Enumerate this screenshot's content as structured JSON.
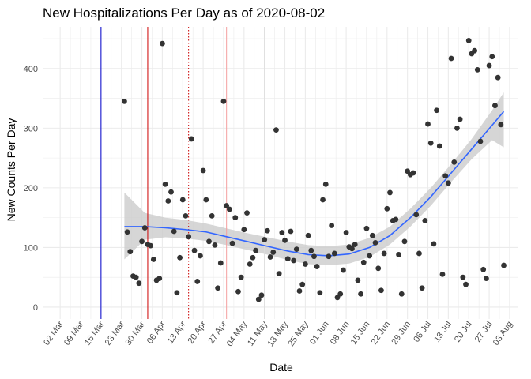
{
  "chart_data": {
    "type": "scatter",
    "title": "New Hospitalizations Per Day as of 2020-08-02",
    "xlabel": "Date",
    "ylabel": "New Counts Per Day",
    "x_ticks": [
      "02 Mar",
      "09 Mar",
      "16 Mar",
      "23 Mar",
      "30 Mar",
      "06 Apr",
      "13 Apr",
      "20 Apr",
      "27 Apr",
      "04 May",
      "11 May",
      "18 May",
      "25 May",
      "01 Jun",
      "08 Jun",
      "15 Jun",
      "22 Jun",
      "29 Jun",
      "06 Jul",
      "13 Jul",
      "20 Jul",
      "27 Jul",
      "03 Aug"
    ],
    "y_ticks": [
      0,
      100,
      200,
      300,
      400
    ],
    "xlim": [
      "2020-02-25",
      "2020-08-06"
    ],
    "ylim": [
      -20,
      470
    ],
    "grid": true,
    "colors": {
      "points": "#333333",
      "smooth_line": "#3366ff",
      "smooth_band": "#cccccc",
      "grid": "#ebebeb"
    },
    "vlines": [
      {
        "date": "2020-03-16",
        "color": "#0000cc",
        "style": "solid"
      },
      {
        "date": "2020-04-01",
        "color": "#cc0000",
        "style": "solid"
      },
      {
        "date": "2020-04-15",
        "color": "#cc0000",
        "style": "dotted"
      },
      {
        "date": "2020-04-28",
        "color": "#f4a0a0",
        "style": "solid"
      },
      {
        "date": "2020-05-11",
        "color": "#dddddd",
        "style": "solid"
      }
    ],
    "points": [
      [
        "2020-03-24",
        345
      ],
      [
        "2020-03-25",
        126
      ],
      [
        "2020-03-26",
        93
      ],
      [
        "2020-03-27",
        52
      ],
      [
        "2020-03-28",
        50
      ],
      [
        "2020-03-29",
        40
      ],
      [
        "2020-03-30",
        110
      ],
      [
        "2020-03-31",
        133
      ],
      [
        "2020-04-01",
        105
      ],
      [
        "2020-04-02",
        103
      ],
      [
        "2020-04-03",
        80
      ],
      [
        "2020-04-04",
        45
      ],
      [
        "2020-04-05",
        48
      ],
      [
        "2020-04-06",
        442
      ],
      [
        "2020-04-07",
        206
      ],
      [
        "2020-04-08",
        178
      ],
      [
        "2020-04-09",
        193
      ],
      [
        "2020-04-10",
        127
      ],
      [
        "2020-04-11",
        24
      ],
      [
        "2020-04-12",
        83
      ],
      [
        "2020-04-13",
        180
      ],
      [
        "2020-04-14",
        153
      ],
      [
        "2020-04-15",
        118
      ],
      [
        "2020-04-16",
        282
      ],
      [
        "2020-04-17",
        95
      ],
      [
        "2020-04-18",
        43
      ],
      [
        "2020-04-19",
        86
      ],
      [
        "2020-04-20",
        229
      ],
      [
        "2020-04-21",
        180
      ],
      [
        "2020-04-22",
        110
      ],
      [
        "2020-04-23",
        153
      ],
      [
        "2020-04-24",
        104
      ],
      [
        "2020-04-25",
        32
      ],
      [
        "2020-04-26",
        74
      ],
      [
        "2020-04-27",
        345
      ],
      [
        "2020-04-28",
        170
      ],
      [
        "2020-04-29",
        164
      ],
      [
        "2020-04-30",
        107
      ],
      [
        "2020-05-01",
        150
      ],
      [
        "2020-05-02",
        26
      ],
      [
        "2020-05-03",
        50
      ],
      [
        "2020-05-04",
        130
      ],
      [
        "2020-05-05",
        158
      ],
      [
        "2020-05-06",
        72
      ],
      [
        "2020-05-07",
        83
      ],
      [
        "2020-05-08",
        95
      ],
      [
        "2020-05-09",
        13
      ],
      [
        "2020-05-10",
        20
      ],
      [
        "2020-05-11",
        113
      ],
      [
        "2020-05-12",
        128
      ],
      [
        "2020-05-13",
        84
      ],
      [
        "2020-05-14",
        92
      ],
      [
        "2020-05-15",
        297
      ],
      [
        "2020-05-16",
        56
      ],
      [
        "2020-05-17",
        125
      ],
      [
        "2020-05-18",
        112
      ],
      [
        "2020-05-19",
        81
      ],
      [
        "2020-05-20",
        127
      ],
      [
        "2020-05-21",
        78
      ],
      [
        "2020-05-22",
        97
      ],
      [
        "2020-05-23",
        27
      ],
      [
        "2020-05-24",
        38
      ],
      [
        "2020-05-25",
        72
      ],
      [
        "2020-05-26",
        120
      ],
      [
        "2020-05-27",
        95
      ],
      [
        "2020-05-28",
        85
      ],
      [
        "2020-05-29",
        68
      ],
      [
        "2020-05-30",
        24
      ],
      [
        "2020-05-31",
        180
      ],
      [
        "2020-06-01",
        206
      ],
      [
        "2020-06-02",
        85
      ],
      [
        "2020-06-03",
        137
      ],
      [
        "2020-06-04",
        90
      ],
      [
        "2020-06-05",
        16
      ],
      [
        "2020-06-06",
        22
      ],
      [
        "2020-06-07",
        62
      ],
      [
        "2020-06-08",
        125
      ],
      [
        "2020-06-09",
        101
      ],
      [
        "2020-06-10",
        98
      ],
      [
        "2020-06-11",
        105
      ],
      [
        "2020-06-12",
        45
      ],
      [
        "2020-06-13",
        22
      ],
      [
        "2020-06-14",
        75
      ],
      [
        "2020-06-15",
        132
      ],
      [
        "2020-06-16",
        86
      ],
      [
        "2020-06-17",
        120
      ],
      [
        "2020-06-18",
        108
      ],
      [
        "2020-06-19",
        65
      ],
      [
        "2020-06-20",
        28
      ],
      [
        "2020-06-21",
        90
      ],
      [
        "2020-06-22",
        165
      ],
      [
        "2020-06-23",
        192
      ],
      [
        "2020-06-24",
        145
      ],
      [
        "2020-06-25",
        147
      ],
      [
        "2020-06-26",
        88
      ],
      [
        "2020-06-27",
        22
      ],
      [
        "2020-06-28",
        110
      ],
      [
        "2020-06-29",
        228
      ],
      [
        "2020-06-30",
        222
      ],
      [
        "2020-07-01",
        225
      ],
      [
        "2020-07-02",
        155
      ],
      [
        "2020-07-03",
        90
      ],
      [
        "2020-07-04",
        32
      ],
      [
        "2020-07-05",
        145
      ],
      [
        "2020-07-06",
        307
      ],
      [
        "2020-07-07",
        275
      ],
      [
        "2020-07-08",
        106
      ],
      [
        "2020-07-09",
        330
      ],
      [
        "2020-07-10",
        270
      ],
      [
        "2020-07-11",
        55
      ],
      [
        "2020-07-12",
        220
      ],
      [
        "2020-07-13",
        208
      ],
      [
        "2020-07-14",
        417
      ],
      [
        "2020-07-15",
        243
      ],
      [
        "2020-07-16",
        300
      ],
      [
        "2020-07-17",
        315
      ],
      [
        "2020-07-18",
        50
      ],
      [
        "2020-07-19",
        38
      ],
      [
        "2020-07-20",
        447
      ],
      [
        "2020-07-21",
        425
      ],
      [
        "2020-07-22",
        430
      ],
      [
        "2020-07-23",
        398
      ],
      [
        "2020-07-24",
        278
      ],
      [
        "2020-07-25",
        63
      ],
      [
        "2020-07-26",
        48
      ],
      [
        "2020-07-27",
        405
      ],
      [
        "2020-07-28",
        420
      ],
      [
        "2020-07-29",
        338
      ],
      [
        "2020-07-30",
        385
      ],
      [
        "2020-07-31",
        306
      ],
      [
        "2020-08-01",
        70
      ]
    ],
    "smooth": [
      [
        "2020-03-24",
        135
      ],
      [
        "2020-03-31",
        135
      ],
      [
        "2020-04-07",
        133
      ],
      [
        "2020-04-14",
        130
      ],
      [
        "2020-04-21",
        126
      ],
      [
        "2020-04-28",
        118
      ],
      [
        "2020-05-05",
        110
      ],
      [
        "2020-05-12",
        102
      ],
      [
        "2020-05-19",
        94
      ],
      [
        "2020-05-26",
        88
      ],
      [
        "2020-06-02",
        86
      ],
      [
        "2020-06-09",
        89
      ],
      [
        "2020-06-16",
        100
      ],
      [
        "2020-06-23",
        120
      ],
      [
        "2020-06-30",
        150
      ],
      [
        "2020-07-07",
        185
      ],
      [
        "2020-07-14",
        225
      ],
      [
        "2020-07-21",
        265
      ],
      [
        "2020-07-28",
        305
      ],
      [
        "2020-08-01",
        328
      ]
    ],
    "band": [
      [
        192,
        80
      ],
      [
        158,
        113
      ],
      [
        150,
        117
      ],
      [
        146,
        115
      ],
      [
        140,
        111
      ],
      [
        132,
        104
      ],
      [
        124,
        96
      ],
      [
        117,
        88
      ],
      [
        110,
        79
      ],
      [
        104,
        72
      ],
      [
        102,
        70
      ],
      [
        105,
        73
      ],
      [
        116,
        84
      ],
      [
        135,
        105
      ],
      [
        165,
        135
      ],
      [
        200,
        170
      ],
      [
        240,
        210
      ],
      [
        282,
        248
      ],
      [
        330,
        280
      ],
      [
        360,
        268
      ]
    ]
  }
}
